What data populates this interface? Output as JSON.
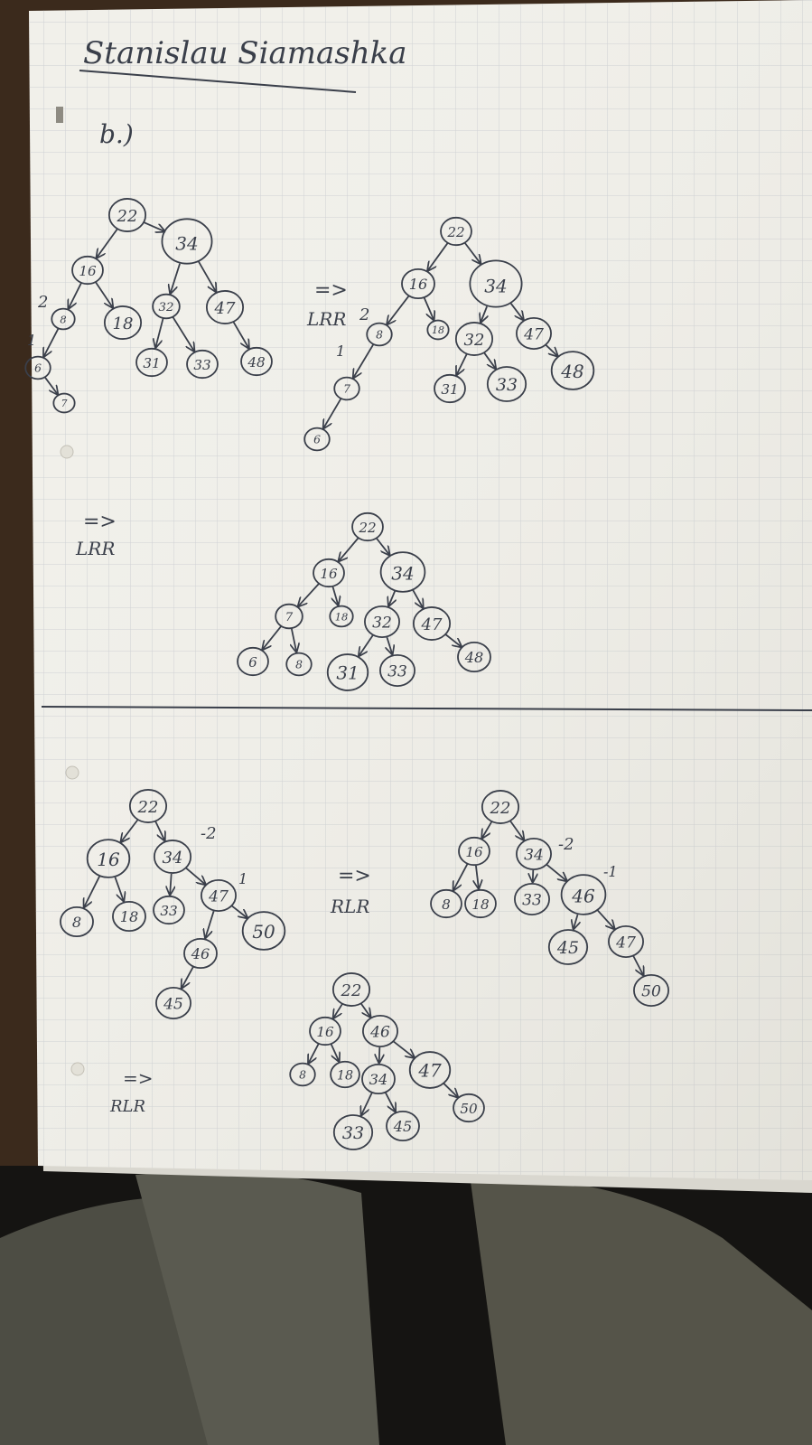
{
  "colors": {
    "paper": "#f1f0ea",
    "grid": "#c9ccd0",
    "ink": "#3a3f4a",
    "desk": "#3b2a1c",
    "cloth": "#57574d"
  },
  "page": {
    "author": "Stanislau Siamashka",
    "part": "b.)"
  },
  "rotation_labels": {
    "lrr_1": "LRR",
    "lrr_2": "LRR",
    "rlr_1": "RLR",
    "rlr_2": "RLR",
    "arrow": "=>"
  },
  "balance_marks": {
    "t1_n8": "2",
    "t1_n6": "1",
    "t2_n8": "2",
    "t2_n7": "1",
    "t4_n34": "-2",
    "t4_n47": "1",
    "t5_n34": "-2",
    "t5_n46": "-1"
  },
  "trees": [
    {
      "nodes": [
        {
          "id": "a",
          "label": "22"
        },
        {
          "id": "b",
          "label": "34"
        },
        {
          "id": "c",
          "label": "16"
        },
        {
          "id": "d",
          "label": "8"
        },
        {
          "id": "e",
          "label": "18"
        },
        {
          "id": "f",
          "label": "32"
        },
        {
          "id": "g",
          "label": "47"
        },
        {
          "id": "h",
          "label": "6"
        },
        {
          "id": "i",
          "label": "7"
        },
        {
          "id": "j",
          "label": "31"
        },
        {
          "id": "k",
          "label": "33"
        },
        {
          "id": "l",
          "label": "48"
        }
      ],
      "edges": [
        [
          "a",
          "c"
        ],
        [
          "a",
          "b"
        ],
        [
          "c",
          "d"
        ],
        [
          "c",
          "e"
        ],
        [
          "d",
          "h"
        ],
        [
          "h",
          "i"
        ],
        [
          "b",
          "f"
        ],
        [
          "b",
          "g"
        ],
        [
          "f",
          "j"
        ],
        [
          "f",
          "k"
        ],
        [
          "g",
          "l"
        ]
      ]
    },
    {
      "nodes": [
        {
          "id": "a",
          "label": "22"
        },
        {
          "id": "b",
          "label": "16"
        },
        {
          "id": "c",
          "label": "34"
        },
        {
          "id": "d",
          "label": "8"
        },
        {
          "id": "e",
          "label": "18"
        },
        {
          "id": "f",
          "label": "32"
        },
        {
          "id": "g",
          "label": "47"
        },
        {
          "id": "h",
          "label": "7"
        },
        {
          "id": "i",
          "label": "6"
        },
        {
          "id": "j",
          "label": "31"
        },
        {
          "id": "k",
          "label": "33"
        },
        {
          "id": "l",
          "label": "48"
        }
      ],
      "edges": [
        [
          "a",
          "b"
        ],
        [
          "a",
          "c"
        ],
        [
          "b",
          "d"
        ],
        [
          "b",
          "e"
        ],
        [
          "d",
          "h"
        ],
        [
          "h",
          "i"
        ],
        [
          "c",
          "f"
        ],
        [
          "c",
          "g"
        ],
        [
          "f",
          "j"
        ],
        [
          "f",
          "k"
        ],
        [
          "g",
          "l"
        ]
      ]
    },
    {
      "nodes": [
        {
          "id": "a",
          "label": "22"
        },
        {
          "id": "b",
          "label": "16"
        },
        {
          "id": "c",
          "label": "34"
        },
        {
          "id": "d",
          "label": "7"
        },
        {
          "id": "e",
          "label": "18"
        },
        {
          "id": "f",
          "label": "32"
        },
        {
          "id": "g",
          "label": "47"
        },
        {
          "id": "h",
          "label": "6"
        },
        {
          "id": "i",
          "label": "8"
        },
        {
          "id": "j",
          "label": "31"
        },
        {
          "id": "k",
          "label": "33"
        },
        {
          "id": "l",
          "label": "48"
        }
      ],
      "edges": [
        [
          "a",
          "b"
        ],
        [
          "a",
          "c"
        ],
        [
          "b",
          "d"
        ],
        [
          "b",
          "e"
        ],
        [
          "d",
          "h"
        ],
        [
          "d",
          "i"
        ],
        [
          "c",
          "f"
        ],
        [
          "c",
          "g"
        ],
        [
          "f",
          "j"
        ],
        [
          "f",
          "k"
        ],
        [
          "g",
          "l"
        ]
      ]
    },
    {
      "nodes": [
        {
          "id": "a",
          "label": "22"
        },
        {
          "id": "b",
          "label": "16"
        },
        {
          "id": "c",
          "label": "34"
        },
        {
          "id": "d",
          "label": "8"
        },
        {
          "id": "e",
          "label": "18"
        },
        {
          "id": "f",
          "label": "33"
        },
        {
          "id": "g",
          "label": "47"
        },
        {
          "id": "h",
          "label": "46"
        },
        {
          "id": "i",
          "label": "50"
        },
        {
          "id": "j",
          "label": "45"
        }
      ],
      "edges": [
        [
          "a",
          "b"
        ],
        [
          "a",
          "c"
        ],
        [
          "b",
          "d"
        ],
        [
          "b",
          "e"
        ],
        [
          "c",
          "f"
        ],
        [
          "c",
          "g"
        ],
        [
          "g",
          "h"
        ],
        [
          "g",
          "i"
        ],
        [
          "h",
          "j"
        ]
      ]
    },
    {
      "nodes": [
        {
          "id": "a",
          "label": "22"
        },
        {
          "id": "b",
          "label": "16"
        },
        {
          "id": "c",
          "label": "34"
        },
        {
          "id": "d",
          "label": "8"
        },
        {
          "id": "e",
          "label": "18"
        },
        {
          "id": "f",
          "label": "33"
        },
        {
          "id": "g",
          "label": "46"
        },
        {
          "id": "h",
          "label": "45"
        },
        {
          "id": "i",
          "label": "47"
        },
        {
          "id": "j",
          "label": "50"
        }
      ],
      "edges": [
        [
          "a",
          "b"
        ],
        [
          "a",
          "c"
        ],
        [
          "b",
          "d"
        ],
        [
          "b",
          "e"
        ],
        [
          "c",
          "f"
        ],
        [
          "c",
          "g"
        ],
        [
          "g",
          "h"
        ],
        [
          "g",
          "i"
        ],
        [
          "i",
          "j"
        ]
      ]
    },
    {
      "nodes": [
        {
          "id": "a",
          "label": "22"
        },
        {
          "id": "b",
          "label": "16"
        },
        {
          "id": "c",
          "label": "46"
        },
        {
          "id": "d",
          "label": "8"
        },
        {
          "id": "e",
          "label": "18"
        },
        {
          "id": "f",
          "label": "34"
        },
        {
          "id": "g",
          "label": "47"
        },
        {
          "id": "h",
          "label": "33"
        },
        {
          "id": "i",
          "label": "45"
        },
        {
          "id": "j",
          "label": "50"
        }
      ],
      "edges": [
        [
          "a",
          "b"
        ],
        [
          "a",
          "c"
        ],
        [
          "b",
          "d"
        ],
        [
          "b",
          "e"
        ],
        [
          "c",
          "f"
        ],
        [
          "c",
          "g"
        ],
        [
          "f",
          "h"
        ],
        [
          "f",
          "i"
        ],
        [
          "g",
          "j"
        ]
      ]
    }
  ]
}
